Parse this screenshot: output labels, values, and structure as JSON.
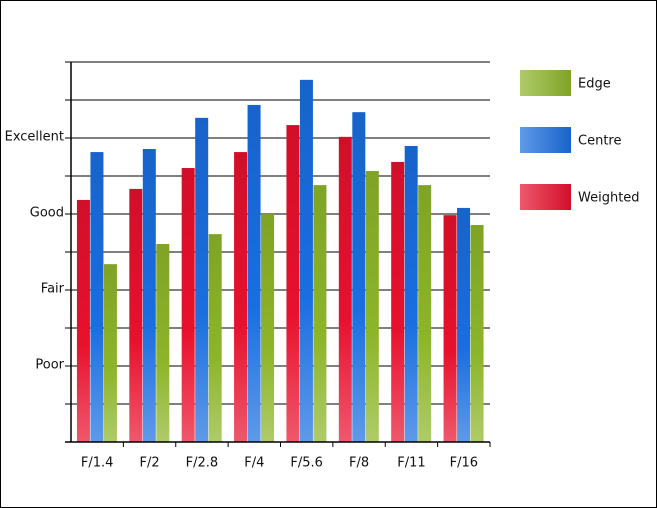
{
  "chart_data": {
    "type": "bar",
    "categories": [
      "F/1.4",
      "F/2",
      "F/2.8",
      "F/4",
      "F/5.6",
      "F/8",
      "F/11",
      "F/16"
    ],
    "series": [
      {
        "name": "Weighted",
        "color": "#e8112d",
        "values": [
          6.37,
          6.66,
          7.21,
          7.63,
          8.34,
          8.03,
          7.37,
          5.97
        ]
      },
      {
        "name": "Centre",
        "color": "#1a6ee0",
        "values": [
          7.63,
          7.71,
          8.53,
          8.87,
          9.53,
          8.68,
          7.79,
          6.16
        ]
      },
      {
        "name": "Edge",
        "color": "#8db52a",
        "values": [
          4.68,
          5.21,
          5.47,
          6.0,
          6.76,
          7.13,
          6.76,
          5.71
        ]
      }
    ],
    "ylim": [
      0,
      10
    ],
    "yticks": [
      {
        "value": 2,
        "label": "Poor"
      },
      {
        "value": 4,
        "label": "Fair"
      },
      {
        "value": 6,
        "label": "Good"
      },
      {
        "value": 8,
        "label": "Excellent"
      }
    ],
    "gridlines": [
      1,
      2,
      3,
      4,
      5,
      6,
      7,
      8,
      9,
      10
    ],
    "grid": true,
    "legend": "right"
  }
}
